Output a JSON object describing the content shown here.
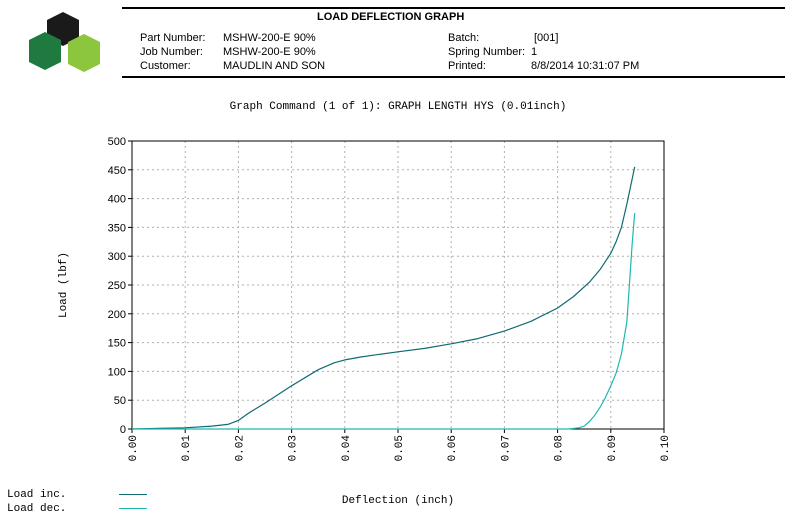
{
  "header": {
    "title": "LOAD DEFLECTION GRAPH",
    "left": [
      {
        "label": "Part Number:",
        "value": "MSHW-200-E 90%"
      },
      {
        "label": "Job Number:",
        "value": "MSHW-200-E 90%"
      },
      {
        "label": "Customer:",
        "value": "MAUDLIN AND SON"
      }
    ],
    "right": [
      {
        "label": "Batch:",
        "value": "[001]"
      },
      {
        "label": "Spring Number:",
        "value": "1"
      },
      {
        "label": "Printed:",
        "value": "8/8/2014 10:31:07 PM"
      }
    ]
  },
  "colors": {
    "logo_dark": "#1a1a1a",
    "logo_green_dark": "#1e7a3e",
    "logo_green_light": "#8cc63f",
    "load_inc": "#0e6b72",
    "load_dec": "#1fb8b0",
    "grid": "#b0b0b0"
  },
  "chart_data": {
    "type": "line",
    "title": "Graph Command (1 of 1): GRAPH LENGTH HYS (0.01inch)",
    "xlabel": "Deflection (inch)",
    "ylabel": "Load (lbf)",
    "xlim": [
      0,
      0.1
    ],
    "ylim": [
      0,
      500
    ],
    "xticks": [
      "0.00",
      "0.01",
      "0.02",
      "0.03",
      "0.04",
      "0.05",
      "0.06",
      "0.07",
      "0.08",
      "0.09",
      "0.10"
    ],
    "yticks": [
      "0",
      "50",
      "100",
      "150",
      "200",
      "250",
      "300",
      "350",
      "400",
      "450",
      "500"
    ],
    "grid": true,
    "legend": "bottom-left",
    "series": [
      {
        "name": "Load inc.",
        "x": [
          0.0,
          0.005,
          0.01,
          0.015,
          0.018,
          0.02,
          0.022,
          0.025,
          0.03,
          0.035,
          0.038,
          0.04,
          0.043,
          0.046,
          0.05,
          0.055,
          0.06,
          0.065,
          0.07,
          0.075,
          0.08,
          0.083,
          0.086,
          0.088,
          0.09,
          0.091,
          0.092,
          0.093,
          0.0945
        ],
        "y": [
          0,
          1,
          2,
          5,
          8,
          15,
          28,
          45,
          75,
          103,
          115,
          120,
          125,
          129,
          134,
          140,
          148,
          157,
          170,
          187,
          210,
          230,
          255,
          277,
          305,
          325,
          350,
          390,
          455
        ]
      },
      {
        "name": "Load dec.",
        "x": [
          0.0945,
          0.094,
          0.0935,
          0.093,
          0.092,
          0.091,
          0.09,
          0.089,
          0.088,
          0.087,
          0.086,
          0.085,
          0.084,
          0.082,
          0.08,
          0.07,
          0.06,
          0.05,
          0.04,
          0.03,
          0.02,
          0.01,
          0.0
        ],
        "y": [
          375,
          320,
          250,
          185,
          130,
          97,
          75,
          55,
          38,
          24,
          13,
          5,
          2,
          0,
          0,
          0,
          0,
          0,
          0,
          0,
          0,
          0,
          0
        ]
      }
    ]
  }
}
